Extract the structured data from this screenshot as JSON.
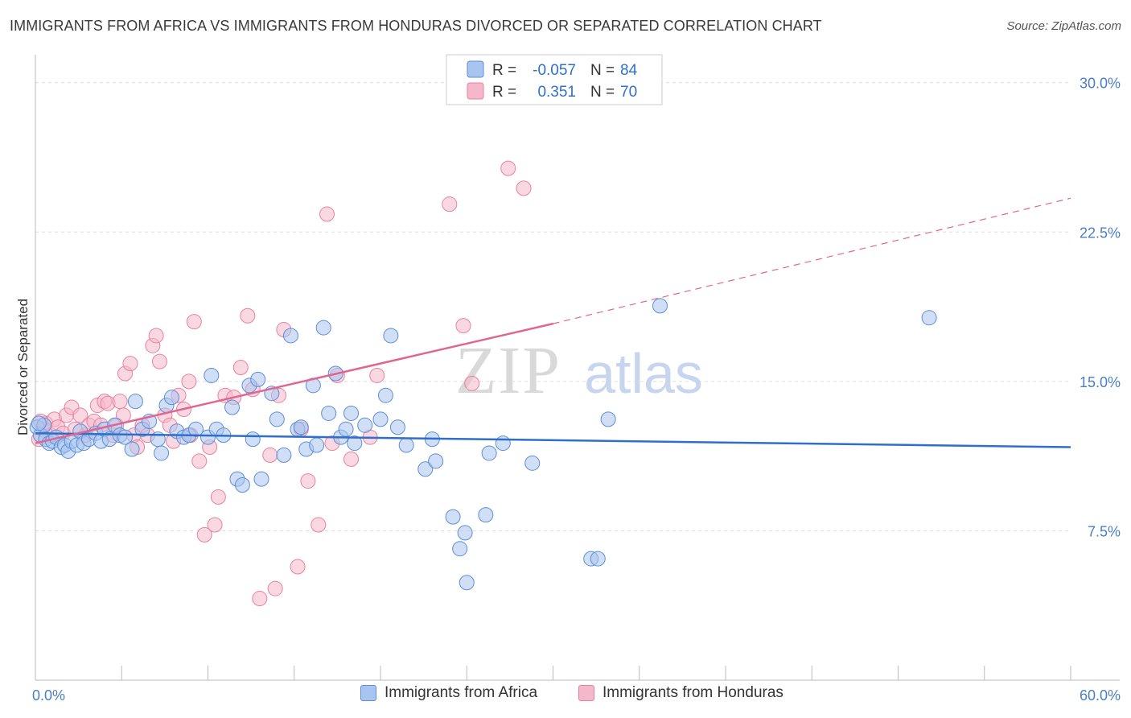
{
  "title": "IMMIGRANTS FROM AFRICA VS IMMIGRANTS FROM HONDURAS DIVORCED OR SEPARATED CORRELATION CHART",
  "source": "Source: ZipAtlas.com",
  "watermark": {
    "zip": "ZIP",
    "atlas": "atlas"
  },
  "colors": {
    "africa_fill": "#a9c4ee",
    "africa_stroke": "#5b8ed8",
    "africa_line": "#2f6fcc",
    "honduras_fill": "#f5b8cb",
    "honduras_stroke": "#e8819f",
    "honduras_line": "#e0668f",
    "axis_label": "#4a7fc8",
    "grid": "#dddddd"
  },
  "legend": {
    "rows": [
      {
        "r_label": "R = ",
        "r_value": "-0.057",
        "n_label": "N = ",
        "n_value": "84"
      },
      {
        "r_label": "R = ",
        "r_value": "0.351",
        "n_label": "N = ",
        "n_value": "70"
      }
    ]
  },
  "chart_data": {
    "type": "scatter",
    "title": "IMMIGRANTS FROM AFRICA VS IMMIGRANTS FROM HONDURAS DIVORCED OR SEPARATED CORRELATION CHART",
    "xlabel": "",
    "ylabel": "Divorced or Separated",
    "xlim": [
      0,
      60
    ],
    "ylim": [
      0,
      31
    ],
    "x_ticks": [
      {
        "value": 0,
        "label": "0.0%"
      },
      {
        "value": 60,
        "label": "60.0%"
      }
    ],
    "y_ticks": [
      {
        "value": 7.5,
        "label": "7.5%"
      },
      {
        "value": 15.0,
        "label": "15.0%"
      },
      {
        "value": 22.5,
        "label": "22.5%"
      },
      {
        "value": 30.0,
        "label": "30.0%"
      }
    ],
    "grid": true,
    "series": [
      {
        "name": "Immigrants from Africa",
        "R": -0.057,
        "N": 84,
        "trend": {
          "x0": 0,
          "y0": 12.4,
          "x1": 60,
          "y1": 11.7
        },
        "points": [
          [
            0.1,
            12.7
          ],
          [
            0.3,
            12.3
          ],
          [
            0.5,
            12.8
          ],
          [
            0.6,
            12.1
          ],
          [
            0.8,
            11.9
          ],
          [
            1.0,
            12.0
          ],
          [
            1.2,
            12.2
          ],
          [
            1.5,
            11.7
          ],
          [
            1.7,
            11.8
          ],
          [
            1.9,
            11.5
          ],
          [
            2.1,
            12.0
          ],
          [
            2.4,
            11.8
          ],
          [
            2.6,
            12.5
          ],
          [
            2.8,
            11.9
          ],
          [
            3.1,
            12.1
          ],
          [
            3.5,
            12.4
          ],
          [
            3.8,
            12.0
          ],
          [
            4.0,
            12.6
          ],
          [
            4.3,
            12.1
          ],
          [
            4.6,
            12.8
          ],
          [
            4.9,
            12.3
          ],
          [
            5.2,
            12.2
          ],
          [
            5.6,
            11.6
          ],
          [
            5.8,
            14.0
          ],
          [
            6.2,
            12.6
          ],
          [
            6.6,
            13.0
          ],
          [
            7.1,
            12.1
          ],
          [
            7.3,
            11.4
          ],
          [
            7.6,
            13.8
          ],
          [
            7.9,
            14.2
          ],
          [
            8.2,
            12.5
          ],
          [
            8.6,
            12.2
          ],
          [
            8.9,
            12.3
          ],
          [
            9.3,
            12.6
          ],
          [
            10.0,
            12.2
          ],
          [
            10.2,
            15.3
          ],
          [
            10.5,
            12.6
          ],
          [
            10.9,
            12.3
          ],
          [
            11.4,
            13.7
          ],
          [
            11.7,
            10.1
          ],
          [
            12.0,
            9.8
          ],
          [
            12.4,
            14.8
          ],
          [
            12.6,
            12.1
          ],
          [
            12.9,
            15.1
          ],
          [
            13.1,
            10.1
          ],
          [
            13.7,
            14.4
          ],
          [
            14.0,
            13.1
          ],
          [
            14.4,
            11.3
          ],
          [
            14.8,
            17.3
          ],
          [
            15.2,
            12.6
          ],
          [
            15.4,
            12.7
          ],
          [
            15.7,
            11.6
          ],
          [
            16.1,
            14.8
          ],
          [
            16.3,
            11.8
          ],
          [
            16.7,
            17.7
          ],
          [
            17.0,
            13.4
          ],
          [
            17.4,
            15.4
          ],
          [
            17.7,
            12.2
          ],
          [
            18.0,
            12.6
          ],
          [
            18.3,
            13.4
          ],
          [
            18.5,
            11.9
          ],
          [
            19.1,
            12.8
          ],
          [
            20.0,
            13.1
          ],
          [
            20.3,
            14.3
          ],
          [
            20.6,
            17.3
          ],
          [
            21.0,
            12.7
          ],
          [
            21.5,
            11.8
          ],
          [
            22.6,
            10.6
          ],
          [
            23.0,
            12.1
          ],
          [
            23.2,
            11.0
          ],
          [
            24.2,
            8.2
          ],
          [
            24.6,
            6.6
          ],
          [
            24.9,
            7.4
          ],
          [
            25.0,
            4.9
          ],
          [
            26.1,
            8.3
          ],
          [
            26.3,
            11.4
          ],
          [
            27.1,
            11.9
          ],
          [
            28.8,
            10.9
          ],
          [
            32.2,
            6.1
          ],
          [
            32.6,
            6.1
          ],
          [
            33.2,
            13.1
          ],
          [
            36.2,
            18.8
          ],
          [
            51.8,
            18.2
          ],
          [
            0.2,
            12.9
          ]
        ]
      },
      {
        "name": "Immigrants from Honduras",
        "R": 0.351,
        "N": 70,
        "trend": {
          "x0": 0,
          "y0": 11.9,
          "x1": 30,
          "y1": 17.9,
          "ext_x1": 60,
          "ext_y1": 24.2
        },
        "points": [
          [
            0.2,
            12.1
          ],
          [
            0.4,
            12.6
          ],
          [
            0.6,
            12.9
          ],
          [
            0.9,
            12.3
          ],
          [
            1.1,
            13.1
          ],
          [
            1.3,
            12.7
          ],
          [
            1.6,
            12.4
          ],
          [
            1.8,
            13.3
          ],
          [
            2.1,
            13.7
          ],
          [
            2.3,
            12.6
          ],
          [
            2.6,
            13.3
          ],
          [
            2.9,
            12.3
          ],
          [
            3.1,
            12.8
          ],
          [
            3.4,
            13.0
          ],
          [
            3.6,
            13.8
          ],
          [
            3.8,
            12.8
          ],
          [
            4.0,
            14.0
          ],
          [
            4.2,
            13.9
          ],
          [
            4.5,
            12.3
          ],
          [
            4.7,
            12.8
          ],
          [
            4.9,
            14.0
          ],
          [
            5.1,
            13.3
          ],
          [
            5.2,
            15.4
          ],
          [
            5.5,
            15.9
          ],
          [
            5.7,
            12.3
          ],
          [
            5.9,
            11.7
          ],
          [
            6.2,
            12.8
          ],
          [
            6.5,
            12.3
          ],
          [
            6.8,
            16.8
          ],
          [
            7.0,
            17.3
          ],
          [
            7.2,
            16.0
          ],
          [
            7.5,
            13.3
          ],
          [
            7.8,
            12.8
          ],
          [
            8.0,
            12.0
          ],
          [
            8.3,
            14.3
          ],
          [
            8.6,
            13.6
          ],
          [
            8.9,
            15.0
          ],
          [
            9.0,
            12.3
          ],
          [
            9.2,
            18.0
          ],
          [
            9.5,
            11.0
          ],
          [
            9.8,
            7.3
          ],
          [
            10.1,
            11.7
          ],
          [
            10.4,
            7.8
          ],
          [
            10.6,
            9.2
          ],
          [
            11.0,
            14.3
          ],
          [
            11.5,
            14.2
          ],
          [
            11.9,
            15.7
          ],
          [
            12.3,
            18.3
          ],
          [
            12.6,
            14.6
          ],
          [
            13.0,
            4.1
          ],
          [
            13.6,
            11.3
          ],
          [
            13.9,
            4.6
          ],
          [
            14.1,
            14.3
          ],
          [
            14.4,
            17.6
          ],
          [
            15.2,
            5.7
          ],
          [
            15.4,
            12.6
          ],
          [
            15.8,
            10.0
          ],
          [
            16.4,
            7.8
          ],
          [
            16.9,
            23.4
          ],
          [
            17.2,
            11.9
          ],
          [
            17.5,
            15.3
          ],
          [
            18.3,
            11.1
          ],
          [
            19.4,
            12.2
          ],
          [
            19.8,
            15.3
          ],
          [
            24.0,
            23.9
          ],
          [
            24.8,
            17.8
          ],
          [
            25.3,
            14.9
          ],
          [
            27.4,
            25.7
          ],
          [
            28.3,
            24.7
          ],
          [
            0.3,
            13.0
          ]
        ]
      }
    ]
  }
}
